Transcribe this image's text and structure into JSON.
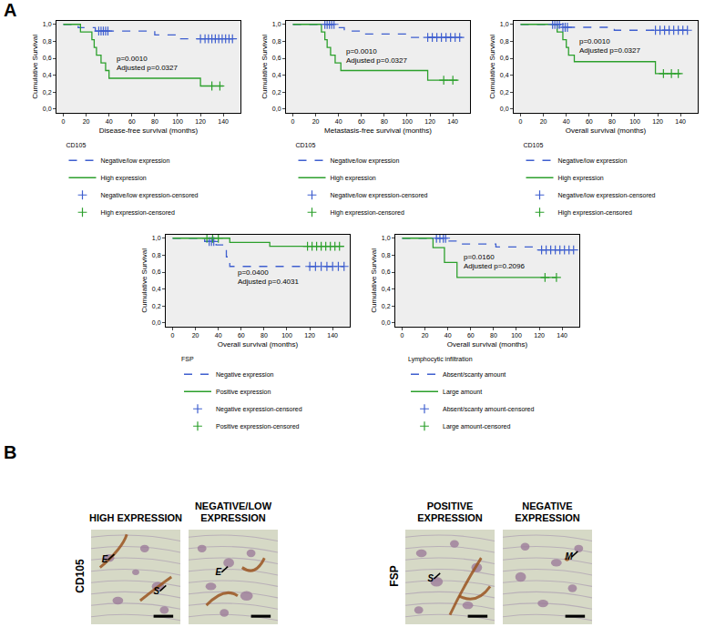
{
  "chart_data": [
    {
      "type": "line",
      "x_label": "Disease-free survival (months)",
      "y_label": "Cumulative Survival",
      "xlim": [
        -6,
        155
      ],
      "xticks": [
        0,
        20,
        40,
        60,
        80,
        100,
        120,
        140
      ],
      "ylim": [
        -0.04,
        1.04
      ],
      "yticks": [
        {
          "value": 0,
          "label": "0,0"
        },
        {
          "value": 0.2,
          "label": "0,2"
        },
        {
          "value": 0.4,
          "label": "0,4"
        },
        {
          "value": 0.6,
          "label": "0,6"
        },
        {
          "value": 0.8,
          "label": "0,8"
        },
        {
          "value": 1,
          "label": "1,0"
        }
      ],
      "grid": false,
      "legend": "bottom",
      "legend_title": "CD105",
      "annotations": [
        "p=0.0010",
        "Adjusted p=0.0327"
      ],
      "series": [
        {
          "name": "Negative/low expression",
          "color": "#3f5fcf",
          "line_style": "dashed",
          "x": [
            0,
            13,
            28,
            80,
            102,
            148
          ],
          "values": [
            1,
            0.96,
            0.92,
            0.875,
            0.83,
            0.83
          ]
        },
        {
          "name": "High expression",
          "color": "#2ca02c",
          "line_style": "solid",
          "x": [
            0,
            15,
            25,
            27,
            29,
            33,
            37,
            40,
            120,
            140
          ],
          "values": [
            1,
            0.909,
            0.818,
            0.727,
            0.636,
            0.545,
            0.455,
            0.364,
            0.273,
            0.273
          ]
        },
        {
          "name": "Negative/low expression-censored",
          "type": "scatter",
          "marker": "cross",
          "color": "#3f5fcf",
          "x": [
            31,
            33,
            35,
            37,
            39,
            120,
            124,
            127,
            130,
            133,
            136,
            139,
            142,
            145,
            148
          ],
          "values": [
            0.92,
            0.92,
            0.92,
            0.92,
            0.92,
            0.83,
            0.83,
            0.83,
            0.83,
            0.83,
            0.83,
            0.83,
            0.83,
            0.83,
            0.83
          ]
        },
        {
          "name": "High expression-censored",
          "type": "scatter",
          "marker": "cross",
          "color": "#2ca02c",
          "x": [
            130,
            137
          ],
          "values": [
            0.273,
            0.273
          ]
        }
      ]
    },
    {
      "type": "line",
      "x_label": "Metastasis-free survival (months)",
      "y_label": "Cumulative Survival",
      "xlim": [
        -6,
        155
      ],
      "xticks": [
        0,
        20,
        40,
        60,
        80,
        100,
        120,
        140
      ],
      "ylim": [
        -0.04,
        1.04
      ],
      "yticks": [
        {
          "value": 0,
          "label": "0,0"
        },
        {
          "value": 0.2,
          "label": "0,2"
        },
        {
          "value": 0.4,
          "label": "0,4"
        },
        {
          "value": 0.6,
          "label": "0,6"
        },
        {
          "value": 0.8,
          "label": "0,8"
        },
        {
          "value": 1,
          "label": "1,0"
        }
      ],
      "grid": false,
      "legend": "bottom",
      "legend_title": "CD105",
      "annotations": [
        "p=0.0010",
        "Adjusted p=0.0327"
      ],
      "series": [
        {
          "name": "Negative/low expression",
          "color": "#3f5fcf",
          "line_style": "dashed",
          "x": [
            0,
            38,
            45,
            60,
            100,
            148
          ],
          "values": [
            1,
            0.96,
            0.92,
            0.885,
            0.845,
            0.845
          ]
        },
        {
          "name": "High expression",
          "color": "#2ca02c",
          "line_style": "solid",
          "x": [
            0,
            25,
            28,
            30,
            33,
            37,
            42,
            118,
            145
          ],
          "values": [
            1,
            0.909,
            0.818,
            0.727,
            0.636,
            0.545,
            0.455,
            0.341,
            0.341
          ]
        },
        {
          "name": "Negative/low expression-censored",
          "type": "scatter",
          "marker": "cross",
          "color": "#3f5fcf",
          "x": [
            28,
            30,
            32,
            34,
            36,
            118,
            122,
            126,
            130,
            134,
            138,
            142,
            146
          ],
          "values": [
            1,
            1,
            1,
            1,
            1,
            0.845,
            0.845,
            0.845,
            0.845,
            0.845,
            0.845,
            0.845,
            0.845
          ]
        },
        {
          "name": "High expression-censored",
          "type": "scatter",
          "marker": "cross",
          "color": "#2ca02c",
          "x": [
            132,
            140
          ],
          "values": [
            0.341,
            0.341
          ]
        }
      ]
    },
    {
      "type": "line",
      "x_label": "Overall survival (months)",
      "y_label": "Cumulative Survival",
      "xlim": [
        -6,
        155
      ],
      "xticks": [
        0,
        20,
        40,
        60,
        80,
        100,
        120,
        140
      ],
      "ylim": [
        -0.04,
        1.04
      ],
      "yticks": [
        {
          "value": 0,
          "label": "0,0"
        },
        {
          "value": 0.2,
          "label": "0,2"
        },
        {
          "value": 0.4,
          "label": "0,4"
        },
        {
          "value": 0.6,
          "label": "0,6"
        },
        {
          "value": 0.8,
          "label": "0,8"
        },
        {
          "value": 1,
          "label": "1,0"
        }
      ],
      "grid": false,
      "legend": "bottom",
      "legend_title": "CD105",
      "annotations": [
        "p=0.0010",
        "Adjusted p=0.0327"
      ],
      "series": [
        {
          "name": "Negative/low expression",
          "color": "#3f5fcf",
          "line_style": "dashed",
          "x": [
            0,
            35,
            82,
            148
          ],
          "values": [
            1,
            0.965,
            0.93,
            0.93
          ]
        },
        {
          "name": "High expression",
          "color": "#2ca02c",
          "line_style": "solid",
          "x": [
            0,
            32,
            37,
            40,
            42,
            47,
            118,
            140
          ],
          "values": [
            1,
            0.909,
            0.818,
            0.727,
            0.636,
            0.56,
            0.42,
            0.42
          ]
        },
        {
          "name": "Negative/low expression-censored",
          "type": "scatter",
          "marker": "cross",
          "color": "#3f5fcf",
          "x": [
            28,
            30,
            32,
            34,
            37,
            39,
            41,
            118,
            122,
            126,
            130,
            134,
            138,
            142,
            146
          ],
          "values": [
            1,
            1,
            1,
            1,
            0.965,
            0.965,
            0.965,
            0.93,
            0.93,
            0.93,
            0.93,
            0.93,
            0.93,
            0.93,
            0.93
          ]
        },
        {
          "name": "High expression-censored",
          "type": "scatter",
          "marker": "cross",
          "color": "#2ca02c",
          "x": [
            125,
            132,
            138
          ],
          "values": [
            0.42,
            0.42,
            0.42
          ]
        }
      ]
    },
    {
      "type": "line",
      "x_label": "Overall survival (months)",
      "y_label": "Cumulative Survival",
      "xlim": [
        -6,
        155
      ],
      "xticks": [
        0,
        20,
        40,
        60,
        80,
        100,
        120,
        140
      ],
      "ylim": [
        -0.04,
        1.04
      ],
      "yticks": [
        {
          "value": 0,
          "label": "0,0"
        },
        {
          "value": 0.2,
          "label": "0,2"
        },
        {
          "value": 0.4,
          "label": "0,4"
        },
        {
          "value": 0.6,
          "label": "0,6"
        },
        {
          "value": 0.8,
          "label": "0,8"
        },
        {
          "value": 1,
          "label": "1,0"
        }
      ],
      "grid": false,
      "legend": "bottom",
      "legend_title": "FSP",
      "annotations": [
        "p=0.0400",
        "Adjusted p=0.4031"
      ],
      "series": [
        {
          "name": "Negative expression",
          "color": "#3f5fcf",
          "line_style": "dashed",
          "x": [
            0,
            28,
            38,
            45,
            47,
            50,
            150
          ],
          "values": [
            1,
            0.96,
            0.92,
            0.89,
            0.78,
            0.667,
            0.667
          ]
        },
        {
          "name": "Positive expression",
          "color": "#2ca02c",
          "line_style": "solid",
          "x": [
            0,
            50,
            85,
            150
          ],
          "values": [
            1,
            0.95,
            0.905,
            0.905
          ]
        },
        {
          "name": "Negative expression-censored",
          "type": "scatter",
          "marker": "cross",
          "color": "#3f5fcf",
          "x": [
            32,
            34,
            36,
            120,
            125,
            130,
            135,
            140,
            145,
            150
          ],
          "values": [
            0.96,
            0.96,
            0.96,
            0.667,
            0.667,
            0.667,
            0.667,
            0.667,
            0.667,
            0.667
          ]
        },
        {
          "name": "Positive expression-censored",
          "type": "scatter",
          "marker": "cross",
          "color": "#2ca02c",
          "x": [
            30,
            35,
            40,
            118,
            122,
            126,
            130,
            134,
            138,
            142,
            146
          ],
          "values": [
            1,
            1,
            1,
            0.905,
            0.905,
            0.905,
            0.905,
            0.905,
            0.905,
            0.905,
            0.905
          ]
        }
      ]
    },
    {
      "type": "line",
      "x_label": "Overall survival (months)",
      "y_label": "Cumulative Survival",
      "xlim": [
        -6,
        155
      ],
      "xticks": [
        0,
        20,
        40,
        60,
        80,
        100,
        120,
        140
      ],
      "ylim": [
        -0.04,
        1.04
      ],
      "yticks": [
        {
          "value": 0,
          "label": "0,0"
        },
        {
          "value": 0.2,
          "label": "0,2"
        },
        {
          "value": 0.4,
          "label": "0,4"
        },
        {
          "value": 0.6,
          "label": "0,6"
        },
        {
          "value": 0.8,
          "label": "0,8"
        },
        {
          "value": 1,
          "label": "1,0"
        }
      ],
      "grid": false,
      "legend": "bottom",
      "legend_title": "Lymphocytic infiltration",
      "annotations": [
        "p=0.0160",
        "Adjusted p=0.2096"
      ],
      "series": [
        {
          "name": "Absent/scanty amount",
          "color": "#3f5fcf",
          "line_style": "dashed",
          "x": [
            0,
            40,
            48,
            82,
            115,
            150
          ],
          "values": [
            1,
            0.966,
            0.931,
            0.897,
            0.862,
            0.862
          ]
        },
        {
          "name": "Large amount",
          "color": "#2ca02c",
          "line_style": "solid",
          "x": [
            0,
            27,
            37,
            48,
            135
          ],
          "values": [
            1,
            0.889,
            0.714,
            0.536,
            0.536
          ]
        },
        {
          "name": "Absent/scanty amount-censored",
          "type": "scatter",
          "marker": "cross",
          "color": "#3f5fcf",
          "x": [
            30,
            33,
            36,
            38,
            122,
            126,
            130,
            134,
            138,
            142,
            146,
            150
          ],
          "values": [
            1,
            1,
            1,
            1,
            0.862,
            0.862,
            0.862,
            0.862,
            0.862,
            0.862,
            0.862,
            0.862
          ]
        },
        {
          "name": "Large amount-censored",
          "type": "scatter",
          "marker": "cross",
          "color": "#2ca02c",
          "x": [
            125,
            135
          ],
          "values": [
            0.536,
            0.536
          ]
        }
      ]
    }
  ],
  "panel_labels": [
    "A",
    "B"
  ],
  "histology": {
    "rows": [
      {
        "label": "CD105",
        "images": [
          {
            "header": "HIGH EXPRESSION",
            "marks": [
              "E",
              "S"
            ]
          },
          {
            "header": "NEGATIVE/LOW EXPRESSION",
            "marks": [
              "E"
            ]
          }
        ]
      },
      {
        "label": "FSP",
        "images": [
          {
            "header": "POSITIVE EXPRESSION",
            "marks": [
              "S"
            ]
          },
          {
            "header": "NEGATIVE EXPRESSION",
            "marks": [
              "M"
            ]
          }
        ]
      }
    ]
  }
}
